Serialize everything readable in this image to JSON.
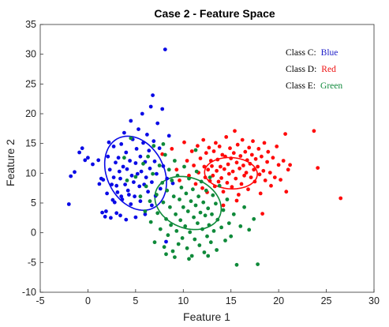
{
  "chart_data": {
    "type": "scatter",
    "title": "Case 2 - Feature Space",
    "xlabel": "Feature 1",
    "ylabel": "Feature 2",
    "xlim": [
      -5,
      30
    ],
    "ylim": [
      -10,
      35
    ],
    "xticks": [
      -5,
      0,
      5,
      10,
      15,
      20,
      25,
      30
    ],
    "yticks": [
      -10,
      -5,
      0,
      5,
      10,
      15,
      20,
      25,
      30,
      35
    ],
    "grid": false,
    "legend_position": "top-right",
    "legend": [
      {
        "prefix": "Class C:",
        "name": "Blue",
        "color": "#1f1fc8"
      },
      {
        "prefix": "Class D:",
        "name": "Red",
        "color": "#ee1111"
      },
      {
        "prefix": "Class E:",
        "name": "Green",
        "color": "#108a3c"
      }
    ],
    "series": [
      {
        "color": "#0a0ae6",
        "ellipse": {
          "cx": 5,
          "cy": 10,
          "rx": 3.1,
          "ry": 6.3,
          "angle_deg": 10
        },
        "points": [
          [
            -2,
            4.8
          ],
          [
            -1.8,
            9.5
          ],
          [
            -1.4,
            10.2
          ],
          [
            -0.9,
            13.5
          ],
          [
            -0.6,
            14.2
          ],
          [
            -0.3,
            12.2
          ],
          [
            0,
            12.6
          ],
          [
            0.5,
            11.5
          ],
          [
            1.1,
            12.2
          ],
          [
            1.2,
            8.2
          ],
          [
            1.4,
            9.1
          ],
          [
            1.5,
            3.4
          ],
          [
            1.6,
            8.9
          ],
          [
            1.8,
            2.7
          ],
          [
            1.9,
            3.6
          ],
          [
            2,
            6.6
          ],
          [
            2.1,
            12.8
          ],
          [
            2.2,
            15.2
          ],
          [
            2.3,
            10.6
          ],
          [
            2.4,
            2.5
          ],
          [
            2.5,
            8.1
          ],
          [
            2.6,
            5.5
          ],
          [
            2.7,
            14.5
          ],
          [
            2.7,
            9.3
          ],
          [
            2.8,
            5.1
          ],
          [
            2.9,
            11.8
          ],
          [
            3,
            3.3
          ],
          [
            3,
            7.9
          ],
          [
            3.1,
            6.8
          ],
          [
            3.2,
            12.6
          ],
          [
            3.3,
            10.3
          ],
          [
            3.4,
            2.9
          ],
          [
            3.4,
            9.1
          ],
          [
            3.5,
            6.1
          ],
          [
            3.5,
            14.9
          ],
          [
            3.6,
            5.6
          ],
          [
            3.7,
            11.1
          ],
          [
            3.8,
            16.8
          ],
          [
            3.9,
            8.1
          ],
          [
            4,
            13.5
          ],
          [
            4,
            2.2
          ],
          [
            4.1,
            10.7
          ],
          [
            4.2,
            7.1
          ],
          [
            4.3,
            6.4
          ],
          [
            4.4,
            12.1
          ],
          [
            4.5,
            18.8
          ],
          [
            4.5,
            4.8
          ],
          [
            4.6,
            9.6
          ],
          [
            4.7,
            15.7
          ],
          [
            4.8,
            8.5
          ],
          [
            4.9,
            6.1
          ],
          [
            5,
            11.7
          ],
          [
            5,
            2.6
          ],
          [
            5.1,
            14.1
          ],
          [
            5.2,
            9.9
          ],
          [
            5.3,
            17.4
          ],
          [
            5.4,
            7.8
          ],
          [
            5.5,
            5.3
          ],
          [
            5.5,
            12.8
          ],
          [
            5.6,
            10.3
          ],
          [
            5.7,
            20
          ],
          [
            5.8,
            15.1
          ],
          [
            5.9,
            8.1
          ],
          [
            6,
            3.1
          ],
          [
            6,
            11.9
          ],
          [
            6.1,
            9.3
          ],
          [
            6.2,
            16.5
          ],
          [
            6.3,
            6.9
          ],
          [
            6.4,
            13.8
          ],
          [
            6.5,
            10.8
          ],
          [
            6.6,
            21.2
          ],
          [
            6.7,
            4.6
          ],
          [
            6.7,
            8.5
          ],
          [
            6.8,
            23.1
          ],
          [
            6.9,
            15.4
          ],
          [
            7,
            12
          ],
          [
            7.1,
            6.2
          ],
          [
            7.2,
            9.9
          ],
          [
            7.3,
            18.4
          ],
          [
            7.5,
            14.2
          ],
          [
            7.6,
            7.4
          ],
          [
            7.8,
            20.8
          ],
          [
            7.9,
            11.2
          ],
          [
            8.1,
            30.8
          ],
          [
            8.2,
            -1.5
          ],
          [
            8.3,
            9.1
          ],
          [
            8.5,
            16.3
          ],
          [
            8.9,
            8.3
          ]
        ]
      },
      {
        "color": "#ff0a0a",
        "ellipse": {
          "cx": 15,
          "cy": 10,
          "rx": 2.8,
          "ry": 2.6,
          "angle_deg": -25
        },
        "points": [
          [
            7.8,
            13.2
          ],
          [
            8.8,
            14.1
          ],
          [
            9.3,
            10.6
          ],
          [
            9.6,
            8.8
          ],
          [
            10.1,
            15.2
          ],
          [
            10.4,
            12.1
          ],
          [
            10.6,
            9.6
          ],
          [
            10.9,
            13.7
          ],
          [
            11.1,
            11.3
          ],
          [
            11.3,
            8.2
          ],
          [
            11.5,
            14.6
          ],
          [
            11.6,
            10.1
          ],
          [
            11.8,
            12.5
          ],
          [
            12,
            7.5
          ],
          [
            12.1,
            15.6
          ],
          [
            12.2,
            11.1
          ],
          [
            12.3,
            9.3
          ],
          [
            12.4,
            13.4
          ],
          [
            12.5,
            6.8
          ],
          [
            12.6,
            10.6
          ],
          [
            12.7,
            14.3
          ],
          [
            12.8,
            8.7
          ],
          [
            12.9,
            12.1
          ],
          [
            13,
            11.2
          ],
          [
            13.1,
            9.6
          ],
          [
            13.2,
            13.7
          ],
          [
            13.3,
            7.8
          ],
          [
            13.4,
            15.1
          ],
          [
            13.5,
            10.4
          ],
          [
            13.6,
            12.3
          ],
          [
            13.7,
            8.6
          ],
          [
            13.8,
            14.5
          ],
          [
            13.9,
            11.1
          ],
          [
            14,
            9.2
          ],
          [
            14.1,
            13.1
          ],
          [
            14.2,
            6.9
          ],
          [
            14.3,
            10.7
          ],
          [
            14.4,
            12.8
          ],
          [
            14.5,
            16.1
          ],
          [
            14.6,
            8.4
          ],
          [
            14.7,
            11.5
          ],
          [
            14.8,
            9.9
          ],
          [
            14.9,
            14.2
          ],
          [
            15,
            12.5
          ],
          [
            15.1,
            7.7
          ],
          [
            15.2,
            10.3
          ],
          [
            15.3,
            13.4
          ],
          [
            15.4,
            17.1
          ],
          [
            15.5,
            9.1
          ],
          [
            15.6,
            11.8
          ],
          [
            15.7,
            14.8
          ],
          [
            15.8,
            6.4
          ],
          [
            15.9,
            10.8
          ],
          [
            16,
            12.9
          ],
          [
            16.1,
            8.2
          ],
          [
            16.2,
            15.6
          ],
          [
            16.3,
            11.3
          ],
          [
            16.4,
            9.6
          ],
          [
            16.5,
            13.6
          ],
          [
            16.6,
            10.1
          ],
          [
            16.7,
            12.2
          ],
          [
            16.8,
            7.3
          ],
          [
            16.9,
            14.3
          ],
          [
            17,
            11.6
          ],
          [
            17.1,
            9.3
          ],
          [
            17.2,
            13.1
          ],
          [
            17.3,
            15.4
          ],
          [
            17.4,
            10.6
          ],
          [
            17.5,
            8.6
          ],
          [
            17.6,
            12.4
          ],
          [
            17.8,
            11.1
          ],
          [
            17.9,
            14.1
          ],
          [
            18,
            9.8
          ],
          [
            18.1,
            6.6
          ],
          [
            18.2,
            12.8
          ],
          [
            18.4,
            10.4
          ],
          [
            18.5,
            15.1
          ],
          [
            18.6,
            8.8
          ],
          [
            18.8,
            11.9
          ],
          [
            18.9,
            13.6
          ],
          [
            19.1,
            10.1
          ],
          [
            19.2,
            7.9
          ],
          [
            19.4,
            12.6
          ],
          [
            19.6,
            9.3
          ],
          [
            19.8,
            14.5
          ],
          [
            20,
            11.4
          ],
          [
            20.2,
            8.9
          ],
          [
            20.5,
            12.1
          ],
          [
            20.7,
            16.6
          ],
          [
            20.8,
            6.9
          ],
          [
            21,
            10.6
          ],
          [
            21.2,
            11.4
          ],
          [
            23.7,
            17.1
          ],
          [
            24.1,
            10.9
          ],
          [
            26.5,
            5.8
          ],
          [
            18.3,
            3.2
          ],
          [
            15.6,
            5.4
          ],
          [
            14.2,
            4.6
          ]
        ]
      },
      {
        "color": "#0f8a3a",
        "ellipse": {
          "cx": 10.5,
          "cy": 5,
          "rx": 3.3,
          "ry": 4.6,
          "angle_deg": 20
        },
        "points": [
          [
            3.8,
            12.6
          ],
          [
            4.1,
            8.8
          ],
          [
            4.5,
            15.9
          ],
          [
            5,
            9.4
          ],
          [
            5.5,
            6.1
          ],
          [
            5.8,
            11.6
          ],
          [
            6,
            3.6
          ],
          [
            6.1,
            7.8
          ],
          [
            6.3,
            12.8
          ],
          [
            6.5,
            5.3
          ],
          [
            6.6,
            1.8
          ],
          [
            6.8,
            9.9
          ],
          [
            6.9,
            14.6
          ],
          [
            7,
            -1.6
          ],
          [
            7.2,
            6.4
          ],
          [
            7.3,
            3.3
          ],
          [
            7.5,
            11.3
          ],
          [
            7.6,
            0.6
          ],
          [
            7.8,
            8.4
          ],
          [
            7.9,
            5.1
          ],
          [
            8,
            -2.4
          ],
          [
            8.1,
            13.1
          ],
          [
            8.2,
            2.3
          ],
          [
            8.3,
            7.1
          ],
          [
            8.4,
            -0.4
          ],
          [
            8.5,
            10.6
          ],
          [
            8.6,
            4.3
          ],
          [
            8.7,
            1.3
          ],
          [
            8.8,
            8.8
          ],
          [
            8.9,
            -3.1
          ],
          [
            9,
            6.1
          ],
          [
            9.1,
            12.1
          ],
          [
            9.2,
            3.1
          ],
          [
            9.3,
            0.3
          ],
          [
            9.4,
            9.6
          ],
          [
            9.5,
            -1.9
          ],
          [
            9.6,
            5.6
          ],
          [
            9.7,
            2.1
          ],
          [
            9.8,
            7.6
          ],
          [
            9.9,
            -0.9
          ],
          [
            10,
            4.3
          ],
          [
            10.1,
            11.1
          ],
          [
            10.2,
            1.1
          ],
          [
            10.3,
            6.6
          ],
          [
            10.4,
            -2.6
          ],
          [
            10.5,
            3.6
          ],
          [
            10.6,
            9.1
          ],
          [
            10.7,
            0.1
          ],
          [
            10.8,
            5.3
          ],
          [
            10.9,
            -3.9
          ],
          [
            11,
            7.3
          ],
          [
            11.1,
            2.6
          ],
          [
            11.2,
            -1.1
          ],
          [
            11.3,
            4.6
          ],
          [
            11.4,
            10.3
          ],
          [
            11.5,
            1.6
          ],
          [
            11.6,
            6.1
          ],
          [
            11.7,
            -2.1
          ],
          [
            11.8,
            3.4
          ],
          [
            11.9,
            8.6
          ],
          [
            12,
            0.6
          ],
          [
            12.1,
            5.1
          ],
          [
            12.2,
            -3.3
          ],
          [
            12.3,
            2.9
          ],
          [
            12.4,
            7.1
          ],
          [
            12.5,
            -0.6
          ],
          [
            12.6,
            4.1
          ],
          [
            12.7,
            1.3
          ],
          [
            12.8,
            9.3
          ],
          [
            12.9,
            -1.6
          ],
          [
            13,
            3.1
          ],
          [
            13.1,
            6.3
          ],
          [
            13.2,
            0.3
          ],
          [
            13.4,
            4.9
          ],
          [
            13.5,
            -2.9
          ],
          [
            13.6,
            2.2
          ],
          [
            13.8,
            7.9
          ],
          [
            14,
            0.9
          ],
          [
            14.2,
            3.8
          ],
          [
            14.4,
            -1.3
          ],
          [
            14.6,
            5.6
          ],
          [
            14.8,
            1.6
          ],
          [
            15,
            -0.6
          ],
          [
            15.3,
            3.1
          ],
          [
            15.6,
            -5.4
          ],
          [
            16,
            1.1
          ],
          [
            16.4,
            4.3
          ],
          [
            16.9,
            0.5
          ],
          [
            17.4,
            2.3
          ],
          [
            17.8,
            -5.3
          ],
          [
            10.6,
            -4.4
          ],
          [
            9.1,
            -4.1
          ],
          [
            7.9,
            14.9
          ],
          [
            11.3,
            13.9
          ],
          [
            8.2,
            -3.6
          ],
          [
            12.6,
            -3.9
          ]
        ]
      }
    ]
  }
}
